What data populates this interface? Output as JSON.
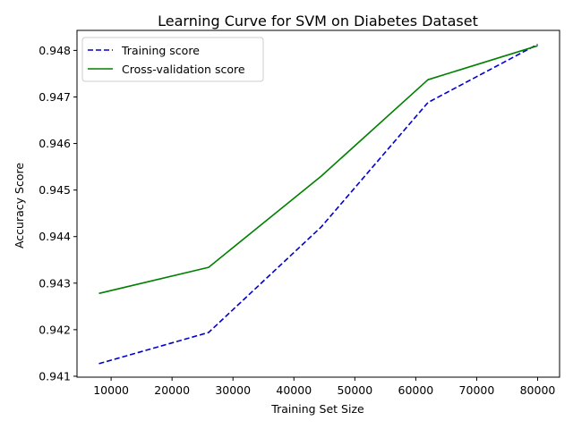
{
  "chart_data": {
    "type": "line",
    "title": "Learning Curve for SVM on Diabetes Dataset",
    "xlabel": "Training Set Size",
    "ylabel": "Accuracy Score",
    "x": [
      8000,
      26000,
      44500,
      62000,
      80000
    ],
    "xlim": [
      4400,
      83600
    ],
    "ylim": [
      0.94098,
      0.94843
    ],
    "xticks": [
      10000,
      20000,
      30000,
      40000,
      50000,
      60000,
      70000,
      80000
    ],
    "yticks": [
      0.941,
      0.942,
      0.943,
      0.944,
      0.945,
      0.946,
      0.947,
      0.948
    ],
    "grid": false,
    "legend_position": "upper-left",
    "series": [
      {
        "name": "Training score",
        "values": [
          0.94127,
          0.94194,
          0.94421,
          0.94688,
          0.94813
        ],
        "color": "#0000cc",
        "line_style": "dashed"
      },
      {
        "name": "Cross-validation score",
        "values": [
          0.94278,
          0.94334,
          0.9453,
          0.94737,
          0.9481
        ],
        "color": "#008000",
        "line_style": "solid"
      }
    ]
  }
}
